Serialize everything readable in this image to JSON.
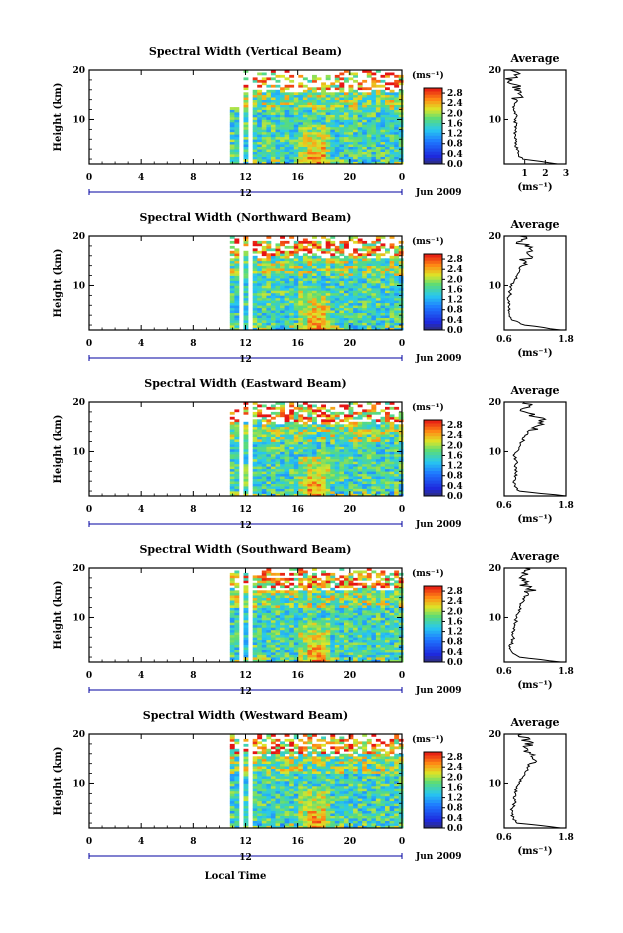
{
  "figure": {
    "xlabel": "Local Time",
    "ylabel": "Height (km)",
    "date_label": "Jun 2009",
    "units": "(ms⁻¹)",
    "avg_title": "Average",
    "colorbar_ticks": [
      "2.8",
      "2.4",
      "2.0",
      "1.6",
      "1.2",
      "0.8",
      "0.4",
      "0.0"
    ]
  },
  "chart_data": [
    {
      "type": "heatmap",
      "title": "Spectral Width (Vertical Beam)",
      "x_ticks": [
        "0",
        "4",
        "8",
        "12",
        "16",
        "20",
        "0"
      ],
      "x_under": "12",
      "xlim": [
        0,
        24
      ],
      "ylim": [
        1,
        20
      ],
      "y_ticks": [
        "20",
        "10"
      ],
      "data_start_hour": 10.8,
      "colorbar_range": [
        0,
        3.0
      ],
      "average_profile": {
        "xlim": [
          0,
          3
        ],
        "x_ticks": [
          "1",
          "2",
          "3"
        ],
        "height_km": [
          1,
          2,
          3,
          4,
          5,
          6,
          7,
          8,
          9,
          10,
          11,
          12,
          13,
          14,
          15,
          16,
          17,
          18,
          19,
          20
        ],
        "value_ms": [
          2.6,
          0.9,
          0.7,
          0.6,
          0.6,
          0.6,
          0.55,
          0.55,
          0.6,
          0.5,
          0.6,
          0.45,
          0.5,
          0.6,
          0.8,
          0.5,
          0.6,
          0.4,
          0.5,
          0.3
        ]
      }
    },
    {
      "type": "heatmap",
      "title": "Spectral Width (Northward Beam)",
      "x_ticks": [
        "0",
        "4",
        "8",
        "12",
        "16",
        "20",
        "0"
      ],
      "x_under": "12",
      "xlim": [
        0,
        24
      ],
      "ylim": [
        1,
        20
      ],
      "y_ticks": [
        "20",
        "10"
      ],
      "data_start_hour": 10.8,
      "colorbar_range": [
        0,
        3.0
      ],
      "average_profile": {
        "xlim": [
          0.6,
          1.8
        ],
        "x_ticks": [
          "0.6",
          "1.8"
        ],
        "height_km": [
          1,
          2,
          3,
          4,
          5,
          6,
          7,
          8,
          9,
          10,
          11,
          12,
          13,
          14,
          15,
          16,
          17,
          18,
          19,
          20
        ],
        "value_ms": [
          1.7,
          1.0,
          0.75,
          0.7,
          0.68,
          0.7,
          0.68,
          0.7,
          0.72,
          0.75,
          0.8,
          0.85,
          0.9,
          0.95,
          1.0,
          1.1,
          1.15,
          1.0,
          0.95,
          0.9
        ]
      }
    },
    {
      "type": "heatmap",
      "title": "Spectral Width (Eastward Beam)",
      "x_ticks": [
        "0",
        "4",
        "8",
        "12",
        "16",
        "20",
        "0"
      ],
      "x_under": "12",
      "xlim": [
        0,
        24
      ],
      "ylim": [
        1,
        20
      ],
      "y_ticks": [
        "20",
        "10"
      ],
      "data_start_hour": 10.8,
      "colorbar_range": [
        0,
        3.0
      ],
      "average_profile": {
        "xlim": [
          0.6,
          1.8
        ],
        "x_ticks": [
          "0.6",
          "1.8"
        ],
        "height_km": [
          1,
          2,
          3,
          4,
          5,
          6,
          7,
          8,
          9,
          10,
          11,
          12,
          13,
          14,
          15,
          16,
          17,
          18,
          19,
          20
        ],
        "value_ms": [
          1.8,
          0.9,
          0.8,
          0.78,
          0.8,
          0.85,
          0.8,
          0.85,
          0.8,
          0.85,
          0.9,
          0.95,
          1.0,
          1.05,
          1.2,
          1.35,
          1.2,
          1.0,
          1.1,
          1.0
        ]
      }
    },
    {
      "type": "heatmap",
      "title": "Spectral Width (Southward Beam)",
      "x_ticks": [
        "0",
        "4",
        "8",
        "12",
        "16",
        "20",
        "0"
      ],
      "x_under": "12",
      "xlim": [
        0,
        24
      ],
      "ylim": [
        1,
        20
      ],
      "y_ticks": [
        "20",
        "10"
      ],
      "data_start_hour": 10.8,
      "colorbar_range": [
        0,
        3.0
      ],
      "average_profile": {
        "xlim": [
          0.6,
          1.8
        ],
        "x_ticks": [
          "0.6",
          "1.8"
        ],
        "height_km": [
          1,
          2,
          3,
          4,
          5,
          6,
          7,
          8,
          9,
          10,
          11,
          12,
          13,
          14,
          15,
          16,
          17,
          18,
          19,
          20
        ],
        "value_ms": [
          1.7,
          0.9,
          0.75,
          0.72,
          0.74,
          0.78,
          0.75,
          0.8,
          0.82,
          0.85,
          0.88,
          0.9,
          0.95,
          1.0,
          1.05,
          1.1,
          1.0,
          0.9,
          0.95,
          1.0
        ]
      }
    },
    {
      "type": "heatmap",
      "title": "Spectral Width (Westward Beam)",
      "x_ticks": [
        "0",
        "4",
        "8",
        "12",
        "16",
        "20",
        "0"
      ],
      "x_under": "12",
      "xlim": [
        0,
        24
      ],
      "ylim": [
        1,
        20
      ],
      "y_ticks": [
        "20",
        "10"
      ],
      "data_start_hour": 10.8,
      "colorbar_range": [
        0,
        3.0
      ],
      "average_profile": {
        "xlim": [
          0.6,
          1.8
        ],
        "x_ticks": [
          "0.6",
          "1.8"
        ],
        "height_km": [
          1,
          2,
          3,
          4,
          5,
          6,
          7,
          8,
          9,
          10,
          11,
          12,
          13,
          14,
          15,
          16,
          17,
          18,
          19,
          20
        ],
        "value_ms": [
          1.7,
          0.85,
          0.78,
          0.75,
          0.76,
          0.8,
          0.78,
          0.82,
          0.85,
          0.9,
          0.95,
          1.0,
          1.05,
          1.1,
          1.15,
          1.1,
          1.05,
          1.0,
          1.1,
          0.95
        ]
      }
    }
  ]
}
